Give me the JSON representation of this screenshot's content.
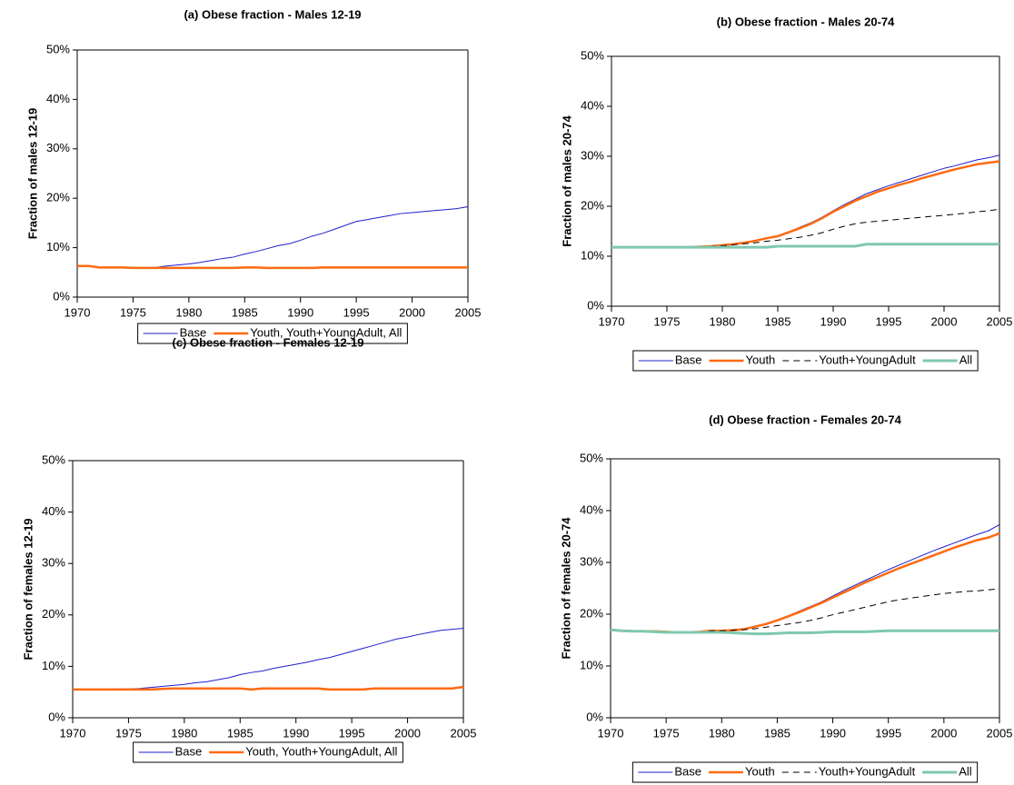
{
  "chart_data": [
    {
      "type": "line",
      "title": "(a) Obese fraction - Males 12-19",
      "ylabel": "Fraction of males 12-19",
      "x": [
        1970,
        1971,
        1972,
        1973,
        1974,
        1975,
        1976,
        1977,
        1978,
        1979,
        1980,
        1981,
        1982,
        1983,
        1984,
        1985,
        1986,
        1987,
        1988,
        1989,
        1990,
        1991,
        1992,
        1993,
        1994,
        1995,
        1996,
        1997,
        1998,
        1999,
        2000,
        2001,
        2002,
        2003,
        2004,
        2005
      ],
      "xlim": [
        1970,
        2005
      ],
      "xticks": [
        1970,
        1975,
        1980,
        1985,
        1990,
        1995,
        2000,
        2005
      ],
      "ylim": [
        0,
        50
      ],
      "yticks": [
        {
          "value": 0,
          "label": "0%"
        },
        {
          "value": 10,
          "label": "10%"
        },
        {
          "value": 20,
          "label": "20%"
        },
        {
          "value": 30,
          "label": "30%"
        },
        {
          "value": 40,
          "label": "40%"
        },
        {
          "value": 50,
          "label": "50%"
        }
      ],
      "series": [
        {
          "name": "Base",
          "color": "#1f1fcc",
          "width": 1,
          "dashed": false,
          "values": [
            6.3,
            6.3,
            6.0,
            6.0,
            5.9,
            5.9,
            5.9,
            6.0,
            6.3,
            6.5,
            6.7,
            7.0,
            7.4,
            7.8,
            8.1,
            8.7,
            9.2,
            9.8,
            10.4,
            10.8,
            11.5,
            12.3,
            12.9,
            13.7,
            14.5,
            15.3,
            15.7,
            16.1,
            16.5,
            16.9,
            17.1,
            17.3,
            17.5,
            17.7,
            17.9,
            18.3
          ]
        },
        {
          "name": "Youth, Youth+YoungAdult, All",
          "color": "#ff6a10",
          "width": 2.5,
          "dashed": false,
          "values": [
            6.3,
            6.3,
            6.0,
            6.0,
            6.0,
            5.9,
            5.9,
            5.9,
            5.9,
            5.9,
            5.9,
            5.9,
            5.9,
            5.9,
            5.9,
            6.0,
            6.0,
            5.9,
            5.9,
            5.9,
            5.9,
            5.9,
            6.0,
            6.0,
            6.0,
            6.0,
            6.0,
            6.0,
            6.0,
            6.0,
            6.0,
            6.0,
            6.0,
            6.0,
            6.0,
            6.0
          ]
        }
      ]
    },
    {
      "type": "line",
      "title": "(b) Obese fraction - Males 20-74",
      "ylabel": "Fraction of males 20-74",
      "x": [
        1970,
        1971,
        1972,
        1973,
        1974,
        1975,
        1976,
        1977,
        1978,
        1979,
        1980,
        1981,
        1982,
        1983,
        1984,
        1985,
        1986,
        1987,
        1988,
        1989,
        1990,
        1991,
        1992,
        1993,
        1994,
        1995,
        1996,
        1997,
        1998,
        1999,
        2000,
        2001,
        2002,
        2003,
        2004,
        2005
      ],
      "xlim": [
        1970,
        2005
      ],
      "xticks": [
        1970,
        1975,
        1980,
        1985,
        1990,
        1995,
        2000,
        2005
      ],
      "ylim": [
        0,
        50
      ],
      "yticks": [
        {
          "value": 0,
          "label": "0%"
        },
        {
          "value": 10,
          "label": "10%"
        },
        {
          "value": 20,
          "label": "20%"
        },
        {
          "value": 30,
          "label": "30%"
        },
        {
          "value": 40,
          "label": "40%"
        },
        {
          "value": 50,
          "label": "50%"
        }
      ],
      "series": [
        {
          "name": "Base",
          "color": "#1f1fcc",
          "width": 1,
          "dashed": false,
          "values": [
            11.8,
            11.8,
            11.8,
            11.8,
            11.8,
            11.8,
            11.8,
            11.8,
            11.8,
            12.0,
            12.2,
            12.4,
            12.7,
            13.1,
            13.6,
            14.1,
            14.9,
            15.8,
            16.7,
            17.8,
            19.1,
            20.3,
            21.4,
            22.5,
            23.3,
            24.1,
            24.8,
            25.5,
            26.2,
            26.9,
            27.6,
            28.1,
            28.7,
            29.3,
            29.7,
            30.2
          ]
        },
        {
          "name": "Youth",
          "color": "#ff6a10",
          "width": 2.5,
          "dashed": false,
          "values": [
            11.8,
            11.8,
            11.8,
            11.8,
            11.8,
            11.8,
            11.8,
            11.8,
            11.9,
            12.0,
            12.2,
            12.4,
            12.7,
            13.1,
            13.6,
            14.0,
            14.8,
            15.6,
            16.5,
            17.6,
            18.9,
            20.0,
            21.1,
            22.0,
            22.9,
            23.6,
            24.3,
            24.9,
            25.6,
            26.2,
            26.8,
            27.4,
            27.9,
            28.4,
            28.7,
            29.0
          ]
        },
        {
          "name": "Youth+YoungAdult",
          "color": "#000000",
          "width": 1,
          "dashed": true,
          "values": [
            11.8,
            11.8,
            11.8,
            11.8,
            11.8,
            11.8,
            11.8,
            11.8,
            11.8,
            12.0,
            12.1,
            12.3,
            12.5,
            12.7,
            13.0,
            13.2,
            13.5,
            13.8,
            14.2,
            14.7,
            15.4,
            16.0,
            16.5,
            16.8,
            17.0,
            17.2,
            17.4,
            17.6,
            17.8,
            18.0,
            18.2,
            18.4,
            18.6,
            18.9,
            19.1,
            19.4
          ]
        },
        {
          "name": "All",
          "color": "#7fc8ae",
          "width": 3,
          "dashed": false,
          "values": [
            11.8,
            11.8,
            11.8,
            11.8,
            11.8,
            11.8,
            11.8,
            11.8,
            11.8,
            11.8,
            11.8,
            11.8,
            11.8,
            11.8,
            11.8,
            12.0,
            12.0,
            12.0,
            12.0,
            12.0,
            12.0,
            12.0,
            12.0,
            12.4,
            12.4,
            12.4,
            12.4,
            12.4,
            12.4,
            12.4,
            12.4,
            12.4,
            12.4,
            12.4,
            12.4,
            12.4
          ]
        }
      ]
    },
    {
      "type": "line",
      "title": "(c) Obese fraction - Females 12-19",
      "ylabel": "Fraction of females 12-19",
      "x": [
        1970,
        1971,
        1972,
        1973,
        1974,
        1975,
        1976,
        1977,
        1978,
        1979,
        1980,
        1981,
        1982,
        1983,
        1984,
        1985,
        1986,
        1987,
        1988,
        1989,
        1990,
        1991,
        1992,
        1993,
        1994,
        1995,
        1996,
        1997,
        1998,
        1999,
        2000,
        2001,
        2002,
        2003,
        2004,
        2005
      ],
      "xlim": [
        1970,
        2005
      ],
      "xticks": [
        1970,
        1975,
        1980,
        1985,
        1990,
        1995,
        2000,
        2005
      ],
      "ylim": [
        0,
        50
      ],
      "yticks": [
        {
          "value": 0,
          "label": "0%"
        },
        {
          "value": 10,
          "label": "10%"
        },
        {
          "value": 20,
          "label": "20%"
        },
        {
          "value": 30,
          "label": "30%"
        },
        {
          "value": 40,
          "label": "40%"
        },
        {
          "value": 50,
          "label": "50%"
        }
      ],
      "series": [
        {
          "name": "Base",
          "color": "#1f1fcc",
          "width": 1,
          "dashed": false,
          "values": [
            5.5,
            5.5,
            5.5,
            5.5,
            5.6,
            5.6,
            5.7,
            5.9,
            6.1,
            6.3,
            6.5,
            6.8,
            7.0,
            7.4,
            7.8,
            8.4,
            8.8,
            9.1,
            9.6,
            10.0,
            10.4,
            10.8,
            11.3,
            11.7,
            12.3,
            12.9,
            13.5,
            14.1,
            14.7,
            15.3,
            15.7,
            16.2,
            16.6,
            17.0,
            17.2,
            17.4
          ]
        },
        {
          "name": "Youth, Youth+YoungAdult, All",
          "color": "#ff6a10",
          "width": 2.5,
          "dashed": false,
          "values": [
            5.5,
            5.5,
            5.5,
            5.5,
            5.5,
            5.5,
            5.5,
            5.5,
            5.6,
            5.7,
            5.7,
            5.7,
            5.7,
            5.7,
            5.7,
            5.7,
            5.5,
            5.7,
            5.7,
            5.7,
            5.7,
            5.7,
            5.7,
            5.5,
            5.5,
            5.5,
            5.5,
            5.7,
            5.7,
            5.7,
            5.7,
            5.7,
            5.7,
            5.7,
            5.7,
            6.0
          ]
        }
      ]
    },
    {
      "type": "line",
      "title": "(d) Obese fraction - Females 20-74",
      "ylabel": "Fraction of females 20-74",
      "x": [
        1970,
        1971,
        1972,
        1973,
        1974,
        1975,
        1976,
        1977,
        1978,
        1979,
        1980,
        1981,
        1982,
        1983,
        1984,
        1985,
        1986,
        1987,
        1988,
        1989,
        1990,
        1991,
        1992,
        1993,
        1994,
        1995,
        1996,
        1997,
        1998,
        1999,
        2000,
        2001,
        2002,
        2003,
        2004,
        2005
      ],
      "xlim": [
        1970,
        2005
      ],
      "xticks": [
        1970,
        1975,
        1980,
        1985,
        1990,
        1995,
        2000,
        2005
      ],
      "ylim": [
        0,
        50
      ],
      "yticks": [
        {
          "value": 0,
          "label": "0%"
        },
        {
          "value": 10,
          "label": "10%"
        },
        {
          "value": 20,
          "label": "20%"
        },
        {
          "value": 30,
          "label": "30%"
        },
        {
          "value": 40,
          "label": "40%"
        },
        {
          "value": 50,
          "label": "50%"
        }
      ],
      "series": [
        {
          "name": "Base",
          "color": "#1f1fcc",
          "width": 1,
          "dashed": false,
          "values": [
            17.0,
            16.8,
            16.7,
            16.7,
            16.7,
            16.6,
            16.5,
            16.5,
            16.6,
            16.8,
            16.8,
            16.9,
            17.2,
            17.7,
            18.2,
            18.9,
            19.7,
            20.6,
            21.5,
            22.4,
            23.5,
            24.6,
            25.6,
            26.6,
            27.6,
            28.6,
            29.5,
            30.4,
            31.3,
            32.2,
            33.0,
            33.8,
            34.6,
            35.4,
            36.1,
            37.3
          ]
        },
        {
          "name": "Youth",
          "color": "#ff6a10",
          "width": 2.5,
          "dashed": false,
          "values": [
            17.0,
            16.8,
            16.7,
            16.7,
            16.7,
            16.6,
            16.5,
            16.5,
            16.6,
            16.8,
            16.8,
            16.9,
            17.1,
            17.6,
            18.1,
            18.8,
            19.6,
            20.4,
            21.3,
            22.2,
            23.2,
            24.2,
            25.2,
            26.2,
            27.1,
            28.0,
            28.9,
            29.7,
            30.5,
            31.3,
            32.1,
            32.9,
            33.6,
            34.3,
            34.8,
            35.6
          ]
        },
        {
          "name": "Youth+YoungAdult",
          "color": "#000000",
          "width": 1,
          "dashed": true,
          "values": [
            17.0,
            16.8,
            16.7,
            16.7,
            16.7,
            16.6,
            16.5,
            16.5,
            16.6,
            16.8,
            16.8,
            16.9,
            17.0,
            17.2,
            17.5,
            17.8,
            18.1,
            18.4,
            18.8,
            19.3,
            19.9,
            20.4,
            20.9,
            21.4,
            21.9,
            22.4,
            22.8,
            23.1,
            23.4,
            23.7,
            24.0,
            24.2,
            24.4,
            24.5,
            24.7,
            24.9
          ]
        },
        {
          "name": "All",
          "color": "#7fc8ae",
          "width": 3,
          "dashed": false,
          "values": [
            17.0,
            16.8,
            16.7,
            16.7,
            16.6,
            16.5,
            16.5,
            16.5,
            16.5,
            16.5,
            16.5,
            16.4,
            16.3,
            16.2,
            16.2,
            16.3,
            16.4,
            16.4,
            16.4,
            16.5,
            16.6,
            16.6,
            16.6,
            16.6,
            16.7,
            16.8,
            16.8,
            16.8,
            16.8,
            16.8,
            16.8,
            16.8,
            16.8,
            16.8,
            16.8,
            16.8
          ]
        }
      ]
    }
  ]
}
